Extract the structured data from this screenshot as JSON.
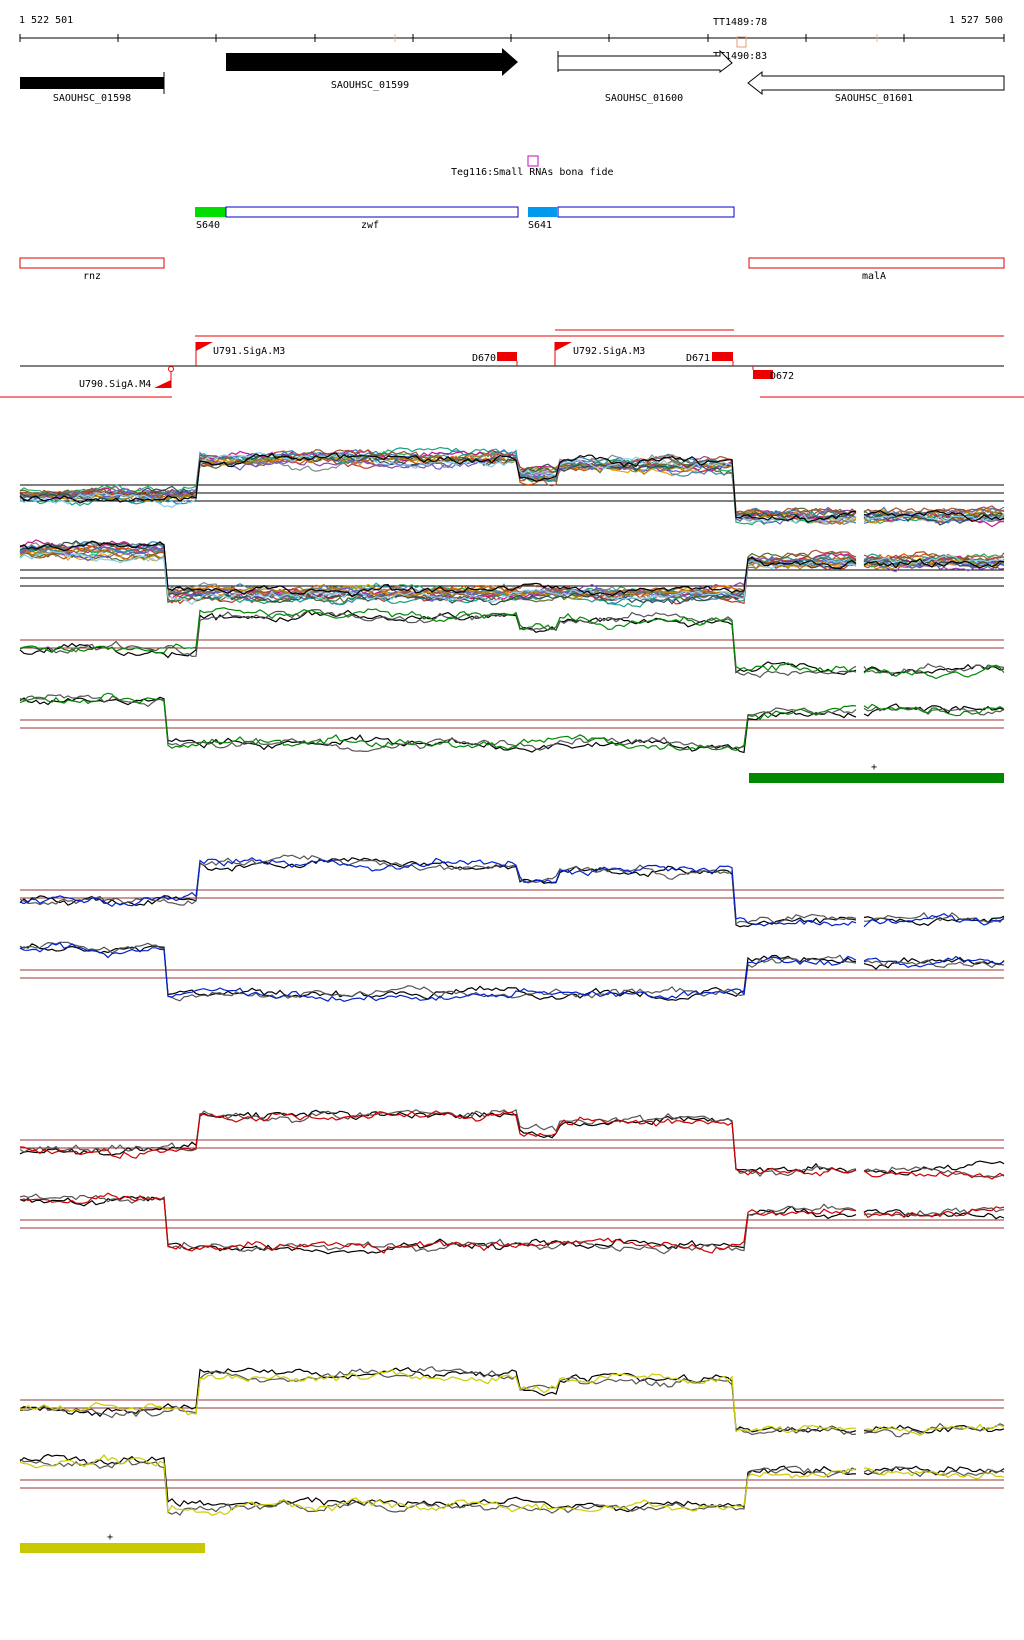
{
  "ruler": {
    "start_label": "1 522 501",
    "end_label": "1 527 500",
    "terminator_labels": [
      "TT1489:78",
      "TT1490:83"
    ]
  },
  "genes": [
    {
      "label": "SAOUHSC_01598",
      "strand": "-",
      "style": "filled"
    },
    {
      "label": "SAOUHSC_01599",
      "strand": "+",
      "style": "filled"
    },
    {
      "label": "SAOUHSC_01600",
      "strand": "+",
      "style": "open"
    },
    {
      "label": "SAOUHSC_01601",
      "strand": "-",
      "style": "open"
    }
  ],
  "srna": {
    "label": "Teg116:Small RNAs bona fide"
  },
  "operon_track": [
    {
      "label": "S640",
      "color": "#00dd00"
    },
    {
      "label": "zwf",
      "color": "#0000cc"
    },
    {
      "label": "S641",
      "color": "#0099ee"
    }
  ],
  "gene_names": [
    {
      "label": "rnz",
      "color": "#dd0000"
    },
    {
      "label": "malA",
      "color": "#dd0000"
    }
  ],
  "transcription_units": [
    {
      "label": "U791.SigA.M3"
    },
    {
      "label": "U792.SigA.M3"
    },
    {
      "label": "U790.SigA.M4"
    },
    {
      "label": "D670"
    },
    {
      "label": "D671"
    },
    {
      "label": "D672"
    }
  ],
  "expression_panels": [
    {
      "name": "all-conditions",
      "color": "multi"
    },
    {
      "name": "condition-green",
      "color": "#008800",
      "bar_marker": "+"
    },
    {
      "name": "condition-blue",
      "color": "#0022cc"
    },
    {
      "name": "condition-red",
      "color": "#cc0000"
    },
    {
      "name": "condition-yellow",
      "color": "#cccc00",
      "bar_marker": "+"
    }
  ],
  "colors": {
    "feature_red": "#ee0000",
    "threshold_line": "#993333",
    "green_bar": "#008800",
    "yellow_bar": "#c8c800"
  }
}
